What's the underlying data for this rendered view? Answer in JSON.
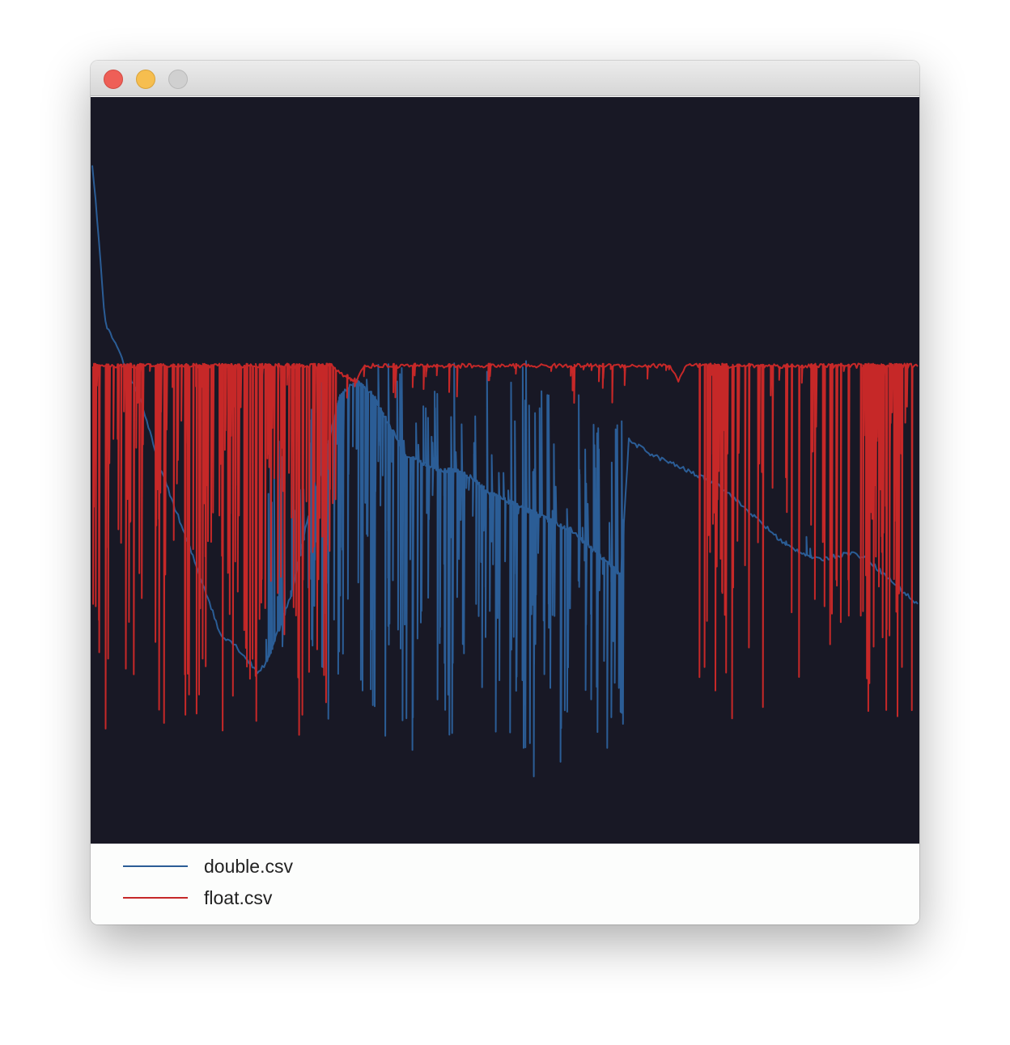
{
  "window": {
    "controls": [
      {
        "name": "close",
        "color": "#ee5f57"
      },
      {
        "name": "minimize",
        "color": "#f6be4f"
      },
      {
        "name": "maximize",
        "color": "#d0d0d0"
      }
    ]
  },
  "chart_data": {
    "type": "line",
    "title": "",
    "xlabel": "",
    "ylabel": "",
    "xlim": [
      0,
      100
    ],
    "ylim": [
      0,
      100
    ],
    "grid": false,
    "background": "#181825",
    "legend_position": "bottom-left",
    "series": [
      {
        "name": "double.csv",
        "color": "#2b5d96",
        "baseline": [
          [
            0,
            91
          ],
          [
            0.8,
            81
          ],
          [
            1.5,
            70
          ],
          [
            2.5,
            67.5
          ],
          [
            4,
            64
          ],
          [
            6,
            59
          ],
          [
            8,
            51
          ],
          [
            10,
            45
          ],
          [
            12,
            39
          ],
          [
            14,
            33
          ],
          [
            15.5,
            28
          ],
          [
            17,
            27
          ],
          [
            18.5,
            25
          ],
          [
            20,
            23
          ],
          [
            21,
            24
          ],
          [
            22,
            27
          ],
          [
            24,
            33
          ],
          [
            26,
            43
          ],
          [
            28,
            51
          ],
          [
            30,
            60
          ],
          [
            32,
            62
          ],
          [
            34,
            60
          ],
          [
            36,
            56
          ],
          [
            38,
            52
          ],
          [
            40,
            51
          ],
          [
            42,
            50
          ],
          [
            44,
            50
          ],
          [
            46,
            49
          ],
          [
            48,
            47
          ],
          [
            50,
            46
          ],
          [
            52,
            45
          ],
          [
            54,
            44
          ],
          [
            56,
            43
          ],
          [
            58,
            42
          ],
          [
            60,
            40
          ],
          [
            62,
            38
          ],
          [
            64,
            36
          ],
          [
            65,
            54
          ],
          [
            66.5,
            53
          ],
          [
            68,
            52
          ],
          [
            70,
            51
          ],
          [
            72,
            50
          ],
          [
            74,
            49
          ],
          [
            76,
            48
          ],
          [
            78,
            46
          ],
          [
            80,
            44
          ],
          [
            82,
            42
          ],
          [
            84,
            40
          ],
          [
            86,
            39
          ],
          [
            88,
            38
          ],
          [
            90,
            38.5
          ],
          [
            92,
            39
          ],
          [
            94,
            38
          ],
          [
            96,
            36
          ],
          [
            98,
            34
          ],
          [
            100,
            32
          ]
        ],
        "spikes": [
          {
            "x_range": [
              21,
              27
            ],
            "count": 30,
            "range": [
              24,
              60
            ]
          },
          {
            "x_range": [
              27,
              37
            ],
            "count": 60,
            "range": [
              14,
              65
            ]
          },
          {
            "x_range": [
              37,
              46
            ],
            "count": 65,
            "range": [
              12,
              65
            ]
          },
          {
            "x_range": [
              46,
              53
            ],
            "count": 50,
            "range": [
              9,
              65
            ]
          },
          {
            "x_range": [
              53,
              60
            ],
            "count": 50,
            "range": [
              4,
              62
            ]
          },
          {
            "x_range": [
              60,
              64.5
            ],
            "count": 32,
            "range": [
              -2,
              60
            ]
          },
          {
            "x_range": [
              84,
              88
            ],
            "count": 3,
            "range": [
              34,
              42
            ]
          }
        ]
      },
      {
        "name": "float.csv",
        "color": "#c62828",
        "baseline": [
          [
            0,
            64
          ],
          [
            5,
            64
          ],
          [
            10,
            64
          ],
          [
            15,
            64
          ],
          [
            20,
            64
          ],
          [
            25,
            64
          ],
          [
            29,
            64
          ],
          [
            30,
            63
          ],
          [
            32,
            62
          ],
          [
            33,
            64
          ],
          [
            35,
            64
          ],
          [
            40,
            64
          ],
          [
            45,
            64
          ],
          [
            50,
            64
          ],
          [
            55,
            64
          ],
          [
            60,
            64
          ],
          [
            65,
            64
          ],
          [
            70,
            64
          ],
          [
            71,
            62
          ],
          [
            72,
            64
          ],
          [
            75,
            64
          ],
          [
            80,
            64
          ],
          [
            85,
            64
          ],
          [
            90,
            64
          ],
          [
            95,
            64
          ],
          [
            100,
            64
          ]
        ],
        "spikes": [
          {
            "x_range": [
              0,
              6
            ],
            "count": 32,
            "range": [
              14,
              64
            ]
          },
          {
            "x_range": [
              6,
              18
            ],
            "count": 65,
            "range": [
              14,
              64
            ]
          },
          {
            "x_range": [
              18,
              26
            ],
            "count": 45,
            "range": [
              14,
              64
            ]
          },
          {
            "x_range": [
              26,
              30
            ],
            "count": 25,
            "range": [
              18,
              64
            ]
          },
          {
            "x_range": [
              30,
              70
            ],
            "count": 40,
            "range": [
              59,
              64
            ]
          },
          {
            "x_range": [
              73.5,
              77
            ],
            "count": 28,
            "range": [
              16,
              64
            ]
          },
          {
            "x_range": [
              77,
              92
            ],
            "count": 32,
            "range": [
              16,
              64
            ]
          },
          {
            "x_range": [
              93,
              97.5
            ],
            "count": 40,
            "range": [
              14,
              64
            ]
          },
          {
            "x_range": [
              97.5,
              100
            ],
            "count": 8,
            "range": [
              14,
              64
            ]
          }
        ]
      }
    ]
  }
}
